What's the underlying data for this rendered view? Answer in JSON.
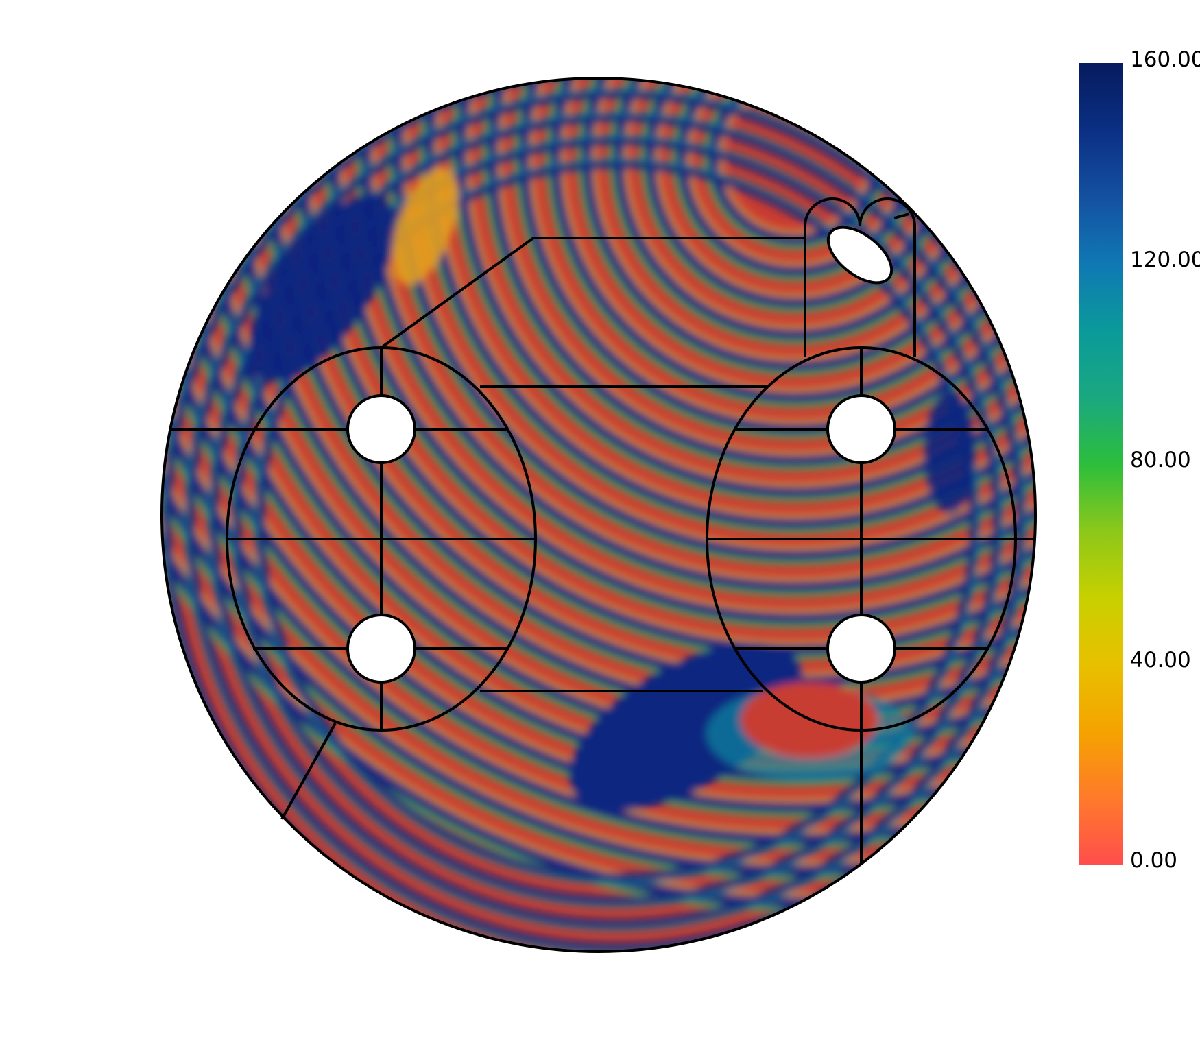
{
  "colorbar": {
    "min": 0,
    "max": 160,
    "ticks": [
      "160.00",
      "120.00",
      "80.00",
      "40.00",
      "0.00"
    ],
    "tick_values": [
      160,
      120,
      80,
      40,
      0
    ],
    "colormap": [
      "#ff4d4d",
      "#ff7a2a",
      "#f5a300",
      "#e8c000",
      "#c8d000",
      "#8cc81a",
      "#2cbe3c",
      "#1aa880",
      "#0a9a9a",
      "#1078b4",
      "#1450a0",
      "#0b2f84",
      "#061b5e"
    ]
  },
  "plot": {
    "field_colors": {
      "low": "#c83c32",
      "high": "#0b2580",
      "mid_low": "#e4a020",
      "mid": "#58b448",
      "mid_high": "#1487a0"
    }
  }
}
